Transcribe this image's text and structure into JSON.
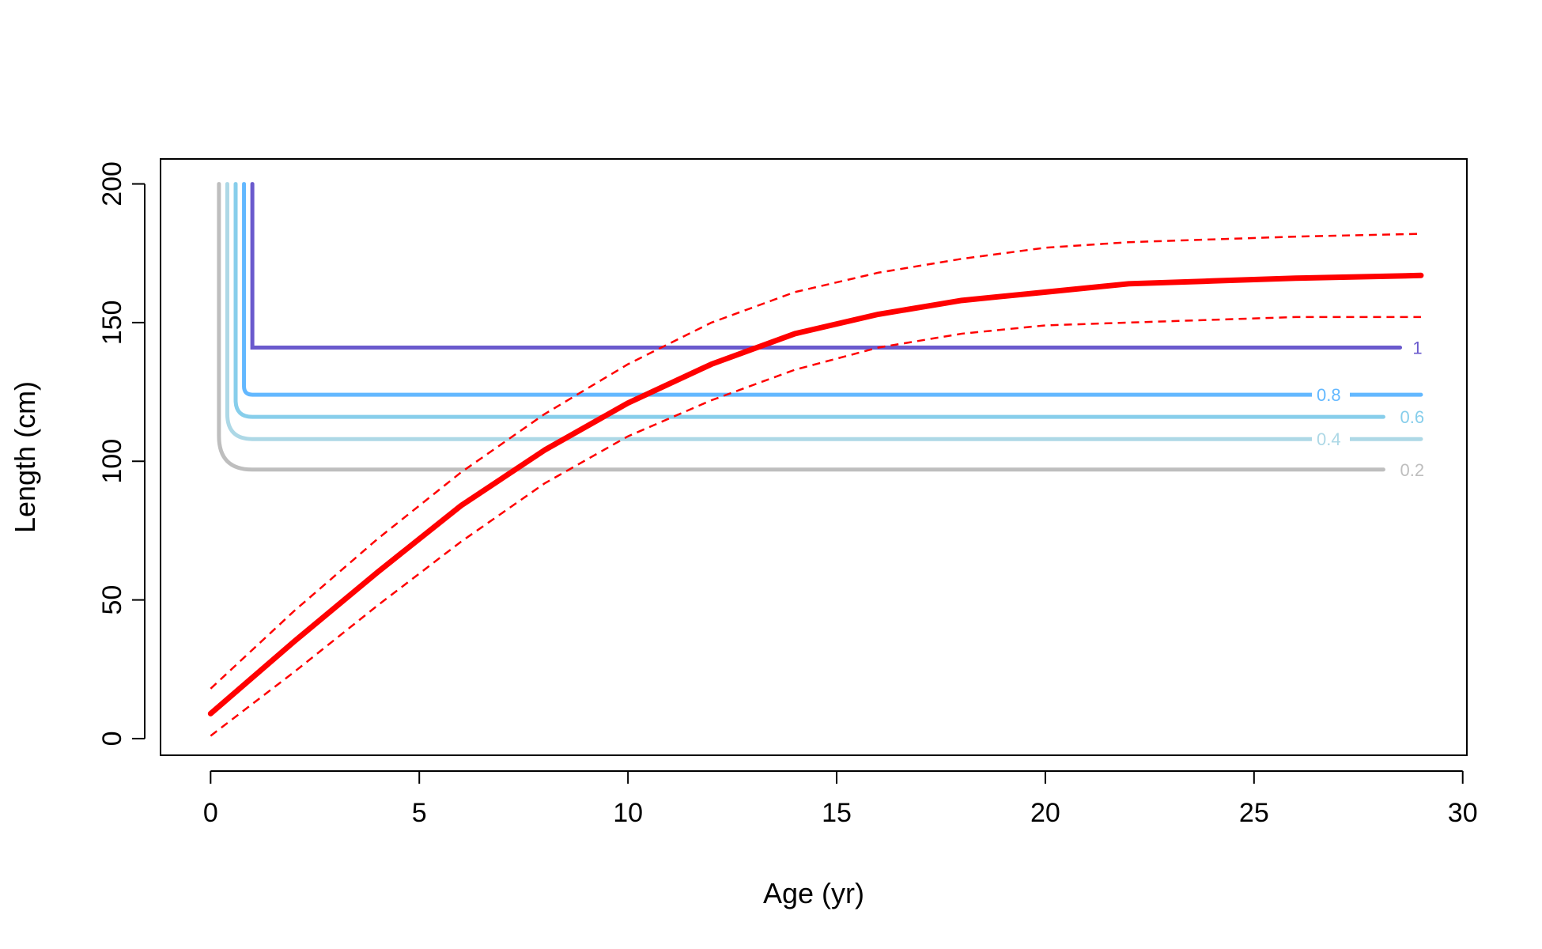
{
  "chart_data": {
    "type": "line",
    "title": "",
    "xlabel": "Age (yr)",
    "ylabel": "Length (cm)",
    "xlim": [
      -1.2,
      30.1
    ],
    "ylim": [
      -6,
      209
    ],
    "xticks": [
      0,
      5,
      10,
      15,
      20,
      25,
      30
    ],
    "yticks": [
      0,
      50,
      100,
      150,
      200
    ],
    "grid": false,
    "legend": "none",
    "growth_curve": {
      "color": "#ff0000",
      "x": [
        0,
        2,
        4,
        6,
        8,
        10,
        12,
        14,
        16,
        18,
        20,
        22,
        24,
        26,
        29
      ],
      "y": [
        9,
        35,
        60,
        84,
        104,
        121,
        135,
        146,
        153,
        158,
        161,
        164,
        165,
        166,
        167
      ],
      "upper": [
        18,
        46,
        72,
        96,
        117,
        135,
        150,
        161,
        168,
        173,
        177,
        179,
        180,
        181,
        182
      ],
      "lower": [
        1,
        24,
        48,
        71,
        92,
        109,
        122,
        133,
        141,
        146,
        149,
        150,
        151,
        152,
        152
      ]
    },
    "contours": [
      {
        "label": "0.2",
        "color": "#bebebe",
        "x_start": 0.2,
        "length": 97,
        "x_end": 28.1,
        "label_x": 28.5,
        "label_y": 97
      },
      {
        "label": "0.4",
        "color": "#add8e6",
        "x_start": 0.4,
        "length": 108,
        "x_end": 29,
        "label_x": 26.5,
        "label_y": 108
      },
      {
        "label": "0.6",
        "color": "#87ceeb",
        "x_start": 0.6,
        "length": 116,
        "x_end": 28.1,
        "label_x": 28.5,
        "label_y": 116
      },
      {
        "label": "0.8",
        "color": "#63b8ff",
        "x_start": 0.8,
        "length": 124,
        "x_end": 29,
        "label_x": 26.5,
        "label_y": 124
      },
      {
        "label": "1",
        "color": "#6a5acd",
        "x_start": 1.0,
        "length": 141,
        "x_end": 28.5,
        "label_x": 28.8,
        "label_y": 141
      }
    ]
  }
}
